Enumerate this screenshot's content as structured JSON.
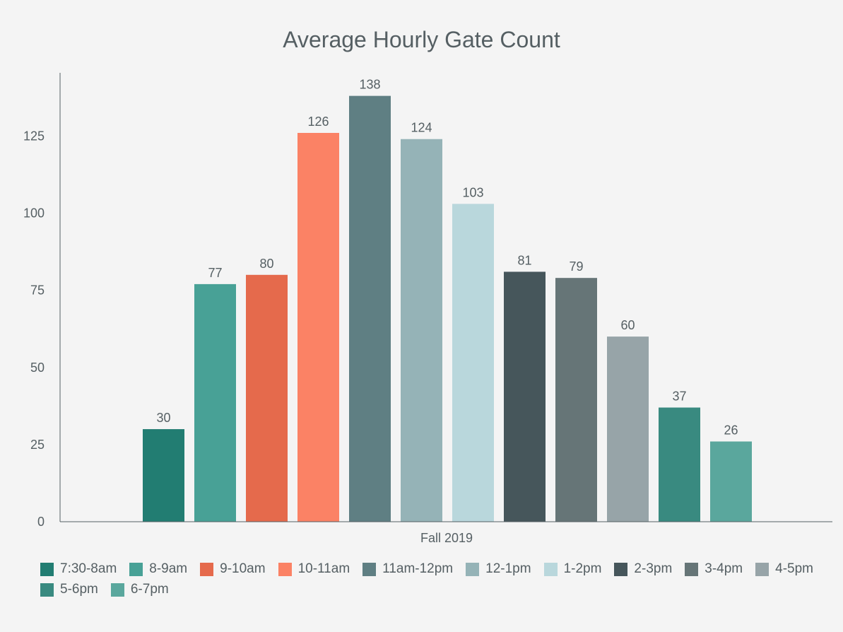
{
  "chart_data": {
    "type": "bar",
    "title": "Average Hourly Gate Count",
    "xlabel": "",
    "ylabel": "",
    "categories": [
      "Fall 2019"
    ],
    "ylim": [
      0,
      145
    ],
    "yticks": [
      0,
      25,
      50,
      75,
      100,
      125
    ],
    "grid": false,
    "legend_position": "bottom",
    "series": [
      {
        "name": "7:30-8am",
        "values": [
          30
        ],
        "color": "#227d72"
      },
      {
        "name": "8-9am",
        "values": [
          77
        ],
        "color": "#48a196"
      },
      {
        "name": "9-10am",
        "values": [
          80
        ],
        "color": "#e56a4c"
      },
      {
        "name": "10-11am",
        "values": [
          126
        ],
        "color": "#fb8265"
      },
      {
        "name": "11am-12pm",
        "values": [
          138
        ],
        "color": "#5f7f83"
      },
      {
        "name": "12-1pm",
        "values": [
          124
        ],
        "color": "#95b3b7"
      },
      {
        "name": "1-2pm",
        "values": [
          103
        ],
        "color": "#b9d7dc"
      },
      {
        "name": "2-3pm",
        "values": [
          81
        ],
        "color": "#46565b"
      },
      {
        "name": "3-4pm",
        "values": [
          79
        ],
        "color": "#667577"
      },
      {
        "name": "4-5pm",
        "values": [
          60
        ],
        "color": "#97a4a8"
      },
      {
        "name": "5-6pm",
        "values": [
          37
        ],
        "color": "#398a80"
      },
      {
        "name": "6-7pm",
        "values": [
          26
        ],
        "color": "#5aa79d"
      }
    ]
  }
}
